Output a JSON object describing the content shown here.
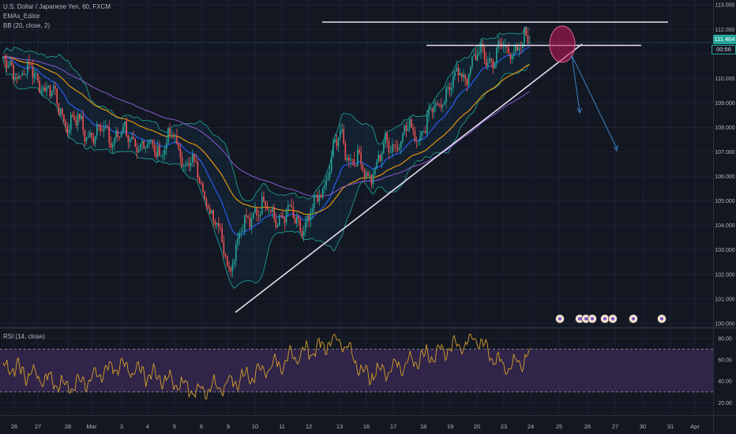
{
  "legend": {
    "symbol": "U.S. Dollar / Japanese Yen, 60, FXCM",
    "ema": "EMAs_Editor",
    "bb": "BB (20, close, 2)",
    "rsi": "RSI (14, close)"
  },
  "price_label": {
    "value": "111.464",
    "countdown": "00:56"
  },
  "colors": {
    "background": "#131722",
    "up": "#26a69a",
    "down": "#ef5350",
    "bb_band": "#1e9b8a",
    "ema_fast": "#2962ff",
    "ema_mid": "#f59e0b",
    "ema_slow": "#7e57c2",
    "rsi_line": "#d4a02a",
    "rsi_band": "#3b2a55",
    "trendline": "#e8e0f0",
    "arrow": "#3b82c4",
    "highlight": "#c2185b",
    "price_label": "#26a69a"
  },
  "chart_data": [
    {
      "type": "candlestick",
      "title": "U.S. Dollar / Japanese Yen, 60, FXCM",
      "x_tick_labels": [
        "26",
        "27",
        "28",
        "Mar",
        "3",
        "4",
        "5",
        "6",
        "9",
        "10",
        "11",
        "12",
        "13",
        "16",
        "17",
        "18",
        "19",
        "20",
        "23",
        "24",
        "25",
        "26",
        "27",
        "30",
        "31",
        "Apr"
      ],
      "y_tick_labels": [
        "100.000",
        "101.000",
        "102.000",
        "103.000",
        "104.000",
        "105.000",
        "106.000",
        "107.000",
        "108.000",
        "109.000",
        "110.000",
        "111.000",
        "112.000",
        "113.000"
      ],
      "ylim": [
        99.9,
        113.2
      ],
      "last_price": 111.464,
      "key_points": [
        {
          "x": "Feb 25",
          "close": 110.5
        },
        {
          "x": "Feb 27",
          "close": 110.1
        },
        {
          "x": "Feb 28",
          "close": 108.3
        },
        {
          "x": "Mar 2",
          "close": 107.8
        },
        {
          "x": "Mar 3",
          "close": 107.7
        },
        {
          "x": "Mar 4",
          "close": 107.1
        },
        {
          "x": "Mar 5",
          "close": 107.4
        },
        {
          "x": "Mar 6",
          "close": 105.8
        },
        {
          "x": "Mar 9",
          "close": 102.5
        },
        {
          "x": "Mar 10",
          "close": 104.8
        },
        {
          "x": "Mar 11",
          "close": 104.4
        },
        {
          "x": "Mar 12",
          "close": 104.0
        },
        {
          "x": "Mar 13",
          "close": 107.6
        },
        {
          "x": "Mar 16",
          "close": 106.0
        },
        {
          "x": "Mar 17",
          "close": 107.5
        },
        {
          "x": "Mar 18",
          "close": 108.0
        },
        {
          "x": "Mar 19",
          "close": 109.7
        },
        {
          "x": "Mar 20",
          "close": 110.8
        },
        {
          "x": "Mar 23",
          "close": 111.1
        },
        {
          "x": "Mar 24",
          "close": 111.46
        }
      ],
      "resistance_levels": [
        112.3,
        111.35
      ],
      "support_trendline": [
        {
          "x": "Mar 9",
          "y": 100.45
        },
        {
          "x": "Mar 25",
          "y": 111.4
        }
      ],
      "projection": [
        {
          "from": {
            "x": "Mar 24",
            "y": 111.4
          },
          "to": {
            "x": "Mar 25",
            "y": 108.9
          }
        },
        {
          "from": {
            "x": "Mar 24",
            "y": 111.4
          },
          "to": {
            "x": "Mar 27",
            "y": 107.0
          }
        }
      ],
      "grid": true
    },
    {
      "type": "line",
      "title": "RSI (14, close)",
      "y_tick_labels": [
        "20.00",
        "40.00",
        "60.00",
        "80.00"
      ],
      "ylim": [
        10,
        88
      ],
      "overbought": 70,
      "oversold": 30,
      "key_points": [
        {
          "x": "Feb 25",
          "y": 55
        },
        {
          "x": "Feb 28",
          "y": 35
        },
        {
          "x": "Mar 3",
          "y": 55
        },
        {
          "x": "Mar 6",
          "y": 30
        },
        {
          "x": "Mar 9",
          "y": 38
        },
        {
          "x": "Mar 11",
          "y": 58
        },
        {
          "x": "Mar 13",
          "y": 80
        },
        {
          "x": "Mar 16",
          "y": 45
        },
        {
          "x": "Mar 18",
          "y": 62
        },
        {
          "x": "Mar 20",
          "y": 80
        },
        {
          "x": "Mar 23",
          "y": 52
        },
        {
          "x": "Mar 24",
          "y": 64
        }
      ],
      "grid": true
    }
  ]
}
